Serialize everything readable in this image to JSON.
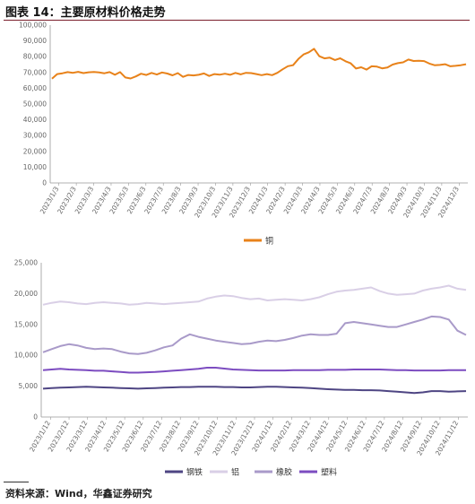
{
  "title": "图表 14：主要原材料价格走势",
  "source": "资料来源：Wind，华鑫证券研究",
  "chart_data": [
    {
      "type": "line",
      "x_ticks": [
        "2023/1/3",
        "2023/2/3",
        "2023/3/3",
        "2023/4/3",
        "2023/5/3",
        "2023/6/3",
        "2023/7/3",
        "2023/8/3",
        "2023/9/3",
        "2023/10/3",
        "2023/11/3",
        "2023/12/3",
        "2024/1/3",
        "2024/2/3",
        "2024/3/3",
        "2024/4/3",
        "2024/5/3",
        "2024/6/3",
        "2024/7/3",
        "2024/8/3",
        "2024/9/3",
        "2024/10/3",
        "2024/11/3",
        "2024/12/3"
      ],
      "y_ticks": [
        "0",
        "10,000",
        "20,000",
        "30,000",
        "40,000",
        "50,000",
        "60,000",
        "70,000",
        "80,000",
        "90,000",
        "100,000"
      ],
      "ylim": [
        0,
        100000
      ],
      "legend_position": "bottom",
      "series": [
        {
          "name": "铜",
          "color": "#e8821a",
          "values": [
            66000,
            69000,
            69500,
            70200,
            69800,
            70400,
            69600,
            70100,
            70300,
            70000,
            69500,
            70200,
            68500,
            70200,
            66800,
            66200,
            67500,
            69200,
            68400,
            69700,
            68700,
            70000,
            69300,
            68200,
            69600,
            67200,
            68400,
            68100,
            68500,
            69400,
            67800,
            69000,
            68600,
            69200,
            68500,
            69700,
            68800,
            69800,
            69600,
            69000,
            68300,
            69000,
            68300,
            69800,
            72000,
            74000,
            74600,
            78500,
            81400,
            82800,
            85000,
            80300,
            78900,
            79400,
            77900,
            79000,
            77100,
            75800,
            72500,
            73300,
            71800,
            73900,
            73700,
            72600,
            73100,
            75000,
            75900,
            76400,
            78200,
            77300,
            77400,
            77200,
            75600,
            74600,
            74800,
            75200,
            73900,
            74200,
            74600,
            75200
          ]
        }
      ]
    },
    {
      "type": "line",
      "x_ticks": [
        "2023/1/12",
        "2023/2/12",
        "2023/3/12",
        "2023/4/12",
        "2023/5/12",
        "2023/6/12",
        "2023/7/12",
        "2023/8/12",
        "2023/9/12",
        "2023/10/12",
        "2023/11/12",
        "2023/12/12",
        "2024/1/12",
        "2024/2/12",
        "2024/3/12",
        "2024/4/12",
        "2024/5/12",
        "2024/6/12",
        "2024/7/12",
        "2024/8/12",
        "2024/9/12",
        "2024/10/12",
        "2024/11/12"
      ],
      "y_ticks": [
        "0",
        "5,000",
        "10,000",
        "15,000",
        "20,000",
        "25,000"
      ],
      "ylim": [
        0,
        25000
      ],
      "legend_position": "bottom",
      "series": [
        {
          "name": "钢铁",
          "color": "#4e4583",
          "values": [
            4600,
            4700,
            4750,
            4800,
            4850,
            4900,
            4850,
            4800,
            4750,
            4700,
            4650,
            4600,
            4650,
            4700,
            4750,
            4800,
            4850,
            4850,
            4900,
            4900,
            4900,
            4850,
            4850,
            4800,
            4800,
            4850,
            4900,
            4900,
            4850,
            4800,
            4750,
            4700,
            4600,
            4500,
            4450,
            4400,
            4400,
            4350,
            4350,
            4300,
            4200,
            4100,
            4000,
            3900,
            4000,
            4200,
            4200,
            4100,
            4150,
            4200
          ]
        },
        {
          "name": "铝",
          "color": "#d9cfe6",
          "values": [
            18200,
            18500,
            18700,
            18600,
            18400,
            18300,
            18500,
            18600,
            18500,
            18400,
            18200,
            18300,
            18500,
            18400,
            18300,
            18400,
            18500,
            18600,
            18700,
            19200,
            19500,
            19700,
            19600,
            19300,
            19100,
            19200,
            18900,
            19000,
            19100,
            19000,
            18900,
            19100,
            19400,
            19900,
            20300,
            20500,
            20600,
            20800,
            21000,
            20400,
            20000,
            19800,
            19900,
            20000,
            20500,
            20800,
            21000,
            21300,
            20800,
            20600
          ]
        },
        {
          "name": "橡胶",
          "color": "#a99ac9",
          "values": [
            10500,
            11000,
            11500,
            11800,
            11600,
            11200,
            11000,
            11100,
            11000,
            10600,
            10300,
            10200,
            10400,
            10800,
            11300,
            11600,
            12700,
            13400,
            13000,
            12700,
            12400,
            12200,
            12000,
            11800,
            11900,
            12200,
            12400,
            12300,
            12500,
            12800,
            13200,
            13400,
            13300,
            13300,
            13500,
            15200,
            15400,
            15200,
            15000,
            14800,
            14600,
            14600,
            15000,
            15400,
            15800,
            16300,
            16200,
            15800,
            14000,
            13300
          ]
        },
        {
          "name": "塑料",
          "color": "#7c4cc0",
          "values": [
            7600,
            7700,
            7800,
            7700,
            7650,
            7600,
            7500,
            7500,
            7400,
            7300,
            7200,
            7200,
            7250,
            7300,
            7400,
            7500,
            7600,
            7700,
            7800,
            8000,
            8000,
            7850,
            7700,
            7650,
            7600,
            7550,
            7550,
            7550,
            7550,
            7600,
            7600,
            7600,
            7600,
            7650,
            7650,
            7650,
            7700,
            7700,
            7700,
            7700,
            7650,
            7600,
            7600,
            7550,
            7550,
            7550,
            7550,
            7600,
            7600,
            7600
          ]
        }
      ]
    }
  ]
}
